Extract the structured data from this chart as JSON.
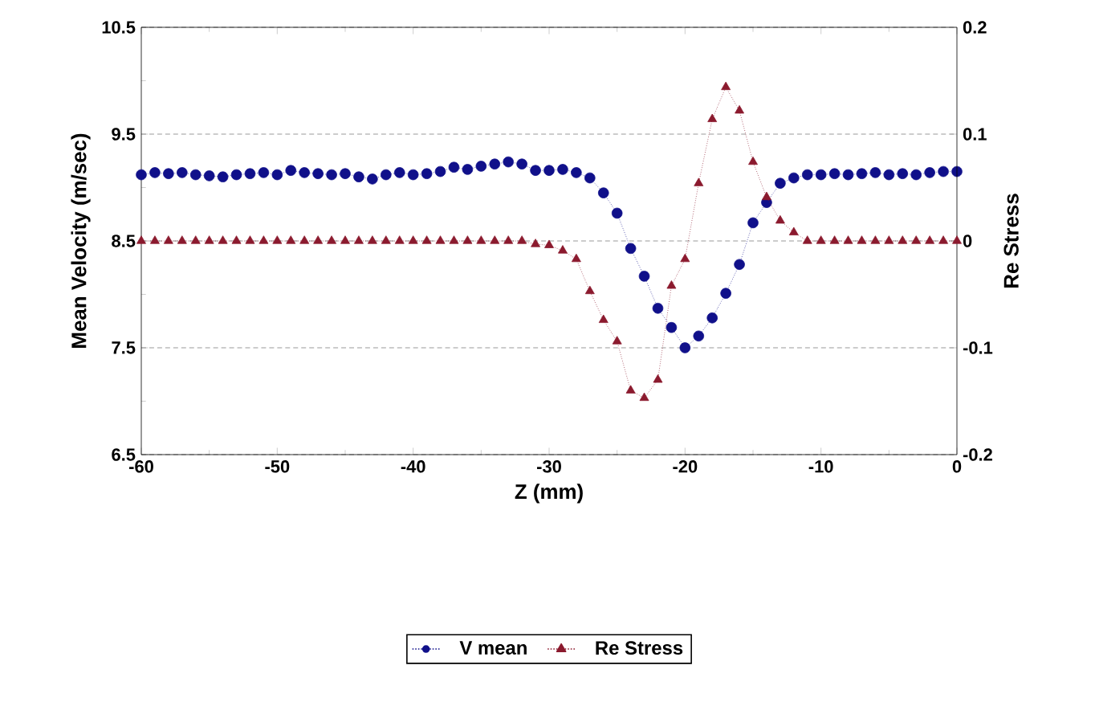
{
  "chart_data": {
    "type": "line",
    "xlabel": "Z (mm)",
    "ylabel": "Mean Velocity (m/sec)",
    "y2label": "Re Stress",
    "x": [
      -60,
      -59,
      -58,
      -57,
      -56,
      -55,
      -54,
      -53,
      -52,
      -51,
      -50,
      -49,
      -48,
      -47,
      -46,
      -45,
      -44,
      -43,
      -42,
      -41,
      -40,
      -39,
      -38,
      -37,
      -36,
      -35,
      -34,
      -33,
      -32,
      -31,
      -30,
      -29,
      -28,
      -27,
      -26,
      -25,
      -24,
      -23,
      -22,
      -21,
      -20,
      -19,
      -18,
      -17,
      -16,
      -15,
      -14,
      -13,
      -12,
      -11,
      -10,
      -9,
      -8,
      -7,
      -6,
      -5,
      -4,
      -3,
      -2,
      -1,
      0
    ],
    "series": [
      {
        "name": "V mean",
        "color": "#10108a",
        "marker": "circle",
        "values": [
          9.12,
          9.14,
          9.13,
          9.14,
          9.12,
          9.11,
          9.1,
          9.12,
          9.13,
          9.14,
          9.12,
          9.16,
          9.14,
          9.13,
          9.12,
          9.13,
          9.1,
          9.08,
          9.12,
          9.14,
          9.12,
          9.13,
          9.15,
          9.19,
          9.17,
          9.2,
          9.22,
          9.24,
          9.22,
          9.16,
          9.16,
          9.17,
          9.14,
          9.09,
          8.95,
          8.76,
          8.43,
          8.17,
          7.87,
          7.69,
          7.5,
          7.61,
          7.78,
          8.01,
          8.28,
          8.67,
          8.86,
          9.04,
          9.09,
          9.12,
          9.12,
          9.13,
          9.12,
          9.13,
          9.14,
          9.12,
          9.13,
          9.12,
          9.14,
          9.15,
          9.15
        ]
      },
      {
        "name": "Re Stress",
        "color": "#8b1a2e",
        "marker": "triangle",
        "axis": "y2",
        "values": [
          0,
          0,
          0,
          0,
          0,
          0,
          0,
          0,
          0,
          0,
          0,
          0,
          0,
          0,
          0,
          0,
          0,
          0,
          0,
          0,
          0,
          0,
          0,
          0,
          0,
          0,
          0,
          0,
          0,
          -0.003,
          -0.004,
          -0.009,
          -0.017,
          -0.047,
          -0.074,
          -0.094,
          -0.14,
          -0.147,
          -0.13,
          -0.042,
          -0.017,
          0.054,
          0.114,
          0.144,
          0.122,
          0.074,
          0.041,
          0.019,
          0.008,
          0,
          0,
          0,
          0,
          0,
          0,
          0,
          0,
          0,
          0,
          0,
          0
        ]
      }
    ],
    "xlim": [
      -60,
      0
    ],
    "xticks": [
      -60,
      {
        "value": -55,
        "label": null
      },
      -50,
      {
        "value": -45,
        "label": null
      },
      -40,
      {
        "value": -35,
        "label": null
      },
      -30,
      {
        "value": -25,
        "label": null
      },
      -20,
      {
        "value": -15,
        "label": null
      },
      -10,
      {
        "value": -5,
        "label": null
      },
      0
    ],
    "ylim": [
      6.5,
      10.5
    ],
    "yticks": [
      6.5,
      {
        "value": 7,
        "label": null
      },
      7.5,
      {
        "value": 8,
        "label": null
      },
      8.5,
      {
        "value": 9,
        "label": null
      },
      9.5,
      {
        "value": 10,
        "label": null
      },
      10.5
    ],
    "y2lim": [
      -0.2,
      0.2
    ],
    "y2ticks": [
      -0.2,
      -0.1,
      0,
      0.1,
      0.2
    ],
    "grid": "y",
    "legend": "bottom",
    "line_style": "dotted"
  }
}
